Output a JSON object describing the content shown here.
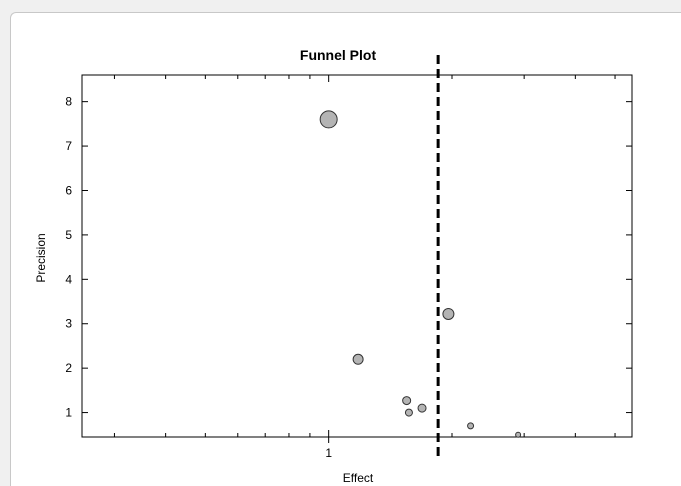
{
  "chart_data": {
    "type": "scatter",
    "title": "Funnel Plot",
    "xlabel": "Effect",
    "ylabel": "Precision",
    "xscale": "log",
    "xlim": [
      0.25,
      5.5
    ],
    "ylim": [
      0.45,
      8.6
    ],
    "yticks": [
      1,
      2,
      3,
      4,
      5,
      6,
      7,
      8
    ],
    "xtick_labels": [
      {
        "value": 1,
        "label": "1"
      }
    ],
    "reference_line": {
      "x": 1.85,
      "style": "dashed"
    },
    "grid": false,
    "marker_color": "#b4b4b4",
    "points": [
      {
        "x": 1.0,
        "y": 7.6,
        "size": 8.5
      },
      {
        "x": 1.96,
        "y": 3.22,
        "size": 5.5
      },
      {
        "x": 1.18,
        "y": 2.2,
        "size": 5
      },
      {
        "x": 1.55,
        "y": 1.27,
        "size": 4
      },
      {
        "x": 1.69,
        "y": 1.1,
        "size": 4
      },
      {
        "x": 1.57,
        "y": 1.0,
        "size": 3.5
      },
      {
        "x": 2.22,
        "y": 0.7,
        "size": 3
      },
      {
        "x": 2.9,
        "y": 0.5,
        "size": 2.5
      }
    ]
  }
}
